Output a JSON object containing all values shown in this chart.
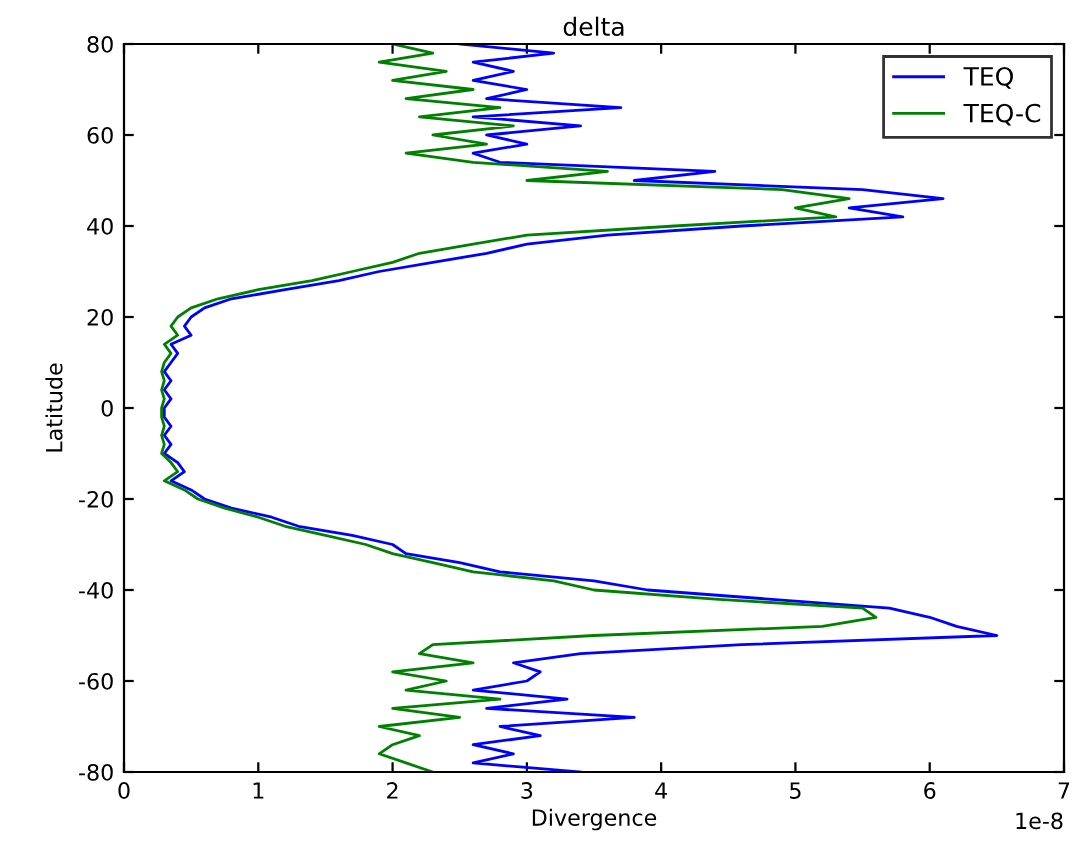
{
  "chart_data": {
    "type": "line",
    "title": "delta",
    "xlabel": "Divergence",
    "ylabel": "Latitude",
    "xlim": [
      0,
      7
    ],
    "xticks": [
      0,
      1,
      2,
      3,
      4,
      5,
      6,
      7
    ],
    "ylim": [
      -80,
      80
    ],
    "yticks": [
      -80,
      -60,
      -40,
      -20,
      0,
      20,
      40,
      60,
      80
    ],
    "annotations": [
      "1e-8"
    ],
    "grid": false,
    "legend": "top right",
    "marker": "none",
    "line_style": "solid",
    "series": [
      {
        "name": "TEQ",
        "color": "#0000ff",
        "x": [
          2.5,
          3.2,
          2.6,
          2.9,
          2.6,
          3.0,
          2.7,
          3.7,
          2.6,
          3.4,
          2.7,
          3.0,
          2.6,
          2.8,
          4.4,
          3.8,
          5.5,
          6.1,
          5.4,
          5.8,
          4.6,
          3.6,
          3.0,
          2.7,
          2.3,
          1.9,
          1.6,
          1.2,
          0.8,
          0.6,
          0.5,
          0.45,
          0.5,
          0.35,
          0.4,
          0.35,
          0.3,
          0.35,
          0.3,
          0.35,
          0.3,
          0.3,
          0.35,
          0.3,
          0.35,
          0.3,
          0.4,
          0.45,
          0.35,
          0.5,
          0.6,
          0.8,
          1.1,
          1.3,
          1.7,
          2.0,
          2.1,
          2.5,
          2.8,
          3.5,
          3.9,
          4.8,
          5.7,
          6.0,
          6.2,
          6.5,
          4.6,
          3.4,
          2.9,
          3.1,
          3.0,
          2.6,
          3.3,
          2.7,
          3.8,
          2.8,
          3.1,
          2.6,
          2.9,
          2.6,
          3.4
        ],
        "values": [
          80,
          78,
          76,
          74,
          72,
          70,
          68,
          66,
          64,
          62,
          60,
          58,
          56,
          54,
          52,
          50,
          48,
          46,
          44,
          42,
          40,
          38,
          36,
          34,
          32,
          30,
          28,
          26,
          24,
          22,
          20,
          18,
          16,
          14,
          12,
          10,
          8,
          6,
          4,
          2,
          0,
          -2,
          -4,
          -6,
          -8,
          -10,
          -12,
          -14,
          -16,
          -18,
          -20,
          -22,
          -24,
          -26,
          -28,
          -30,
          -32,
          -34,
          -36,
          -38,
          -40,
          -42,
          -44,
          -46,
          -48,
          -50,
          -52,
          -54,
          -56,
          -58,
          -60,
          -62,
          -64,
          -66,
          -68,
          -70,
          -72,
          -74,
          -76,
          -78,
          -80
        ]
      },
      {
        "name": "TEQ-C",
        "color": "#008000",
        "x": [
          2.0,
          2.3,
          1.9,
          2.4,
          2.0,
          2.6,
          2.1,
          2.8,
          2.2,
          2.9,
          2.3,
          2.7,
          2.1,
          2.6,
          3.6,
          3.0,
          4.9,
          5.4,
          5.0,
          5.3,
          4.1,
          3.0,
          2.6,
          2.2,
          2.0,
          1.7,
          1.4,
          1.0,
          0.7,
          0.5,
          0.4,
          0.35,
          0.4,
          0.3,
          0.35,
          0.3,
          0.28,
          0.3,
          0.28,
          0.3,
          0.28,
          0.28,
          0.3,
          0.28,
          0.3,
          0.28,
          0.35,
          0.4,
          0.3,
          0.45,
          0.55,
          0.75,
          1.0,
          1.2,
          1.5,
          1.8,
          2.0,
          2.3,
          2.6,
          3.2,
          3.5,
          4.4,
          5.5,
          5.6,
          5.2,
          3.5,
          2.3,
          2.2,
          2.6,
          2.0,
          2.4,
          2.1,
          2.8,
          2.0,
          2.5,
          1.9,
          2.2,
          2.0,
          1.9,
          2.1,
          2.3
        ],
        "values": [
          80,
          78,
          76,
          74,
          72,
          70,
          68,
          66,
          64,
          62,
          60,
          58,
          56,
          54,
          52,
          50,
          48,
          46,
          44,
          42,
          40,
          38,
          36,
          34,
          32,
          30,
          28,
          26,
          24,
          22,
          20,
          18,
          16,
          14,
          12,
          10,
          8,
          6,
          4,
          2,
          0,
          -2,
          -4,
          -6,
          -8,
          -10,
          -12,
          -14,
          -16,
          -18,
          -20,
          -22,
          -24,
          -26,
          -28,
          -30,
          -32,
          -34,
          -36,
          -38,
          -40,
          -42,
          -44,
          -46,
          -48,
          -50,
          -52,
          -54,
          -56,
          -58,
          -60,
          -62,
          -64,
          -66,
          -68,
          -70,
          -72,
          -74,
          -76,
          -78,
          -80
        ]
      }
    ]
  }
}
